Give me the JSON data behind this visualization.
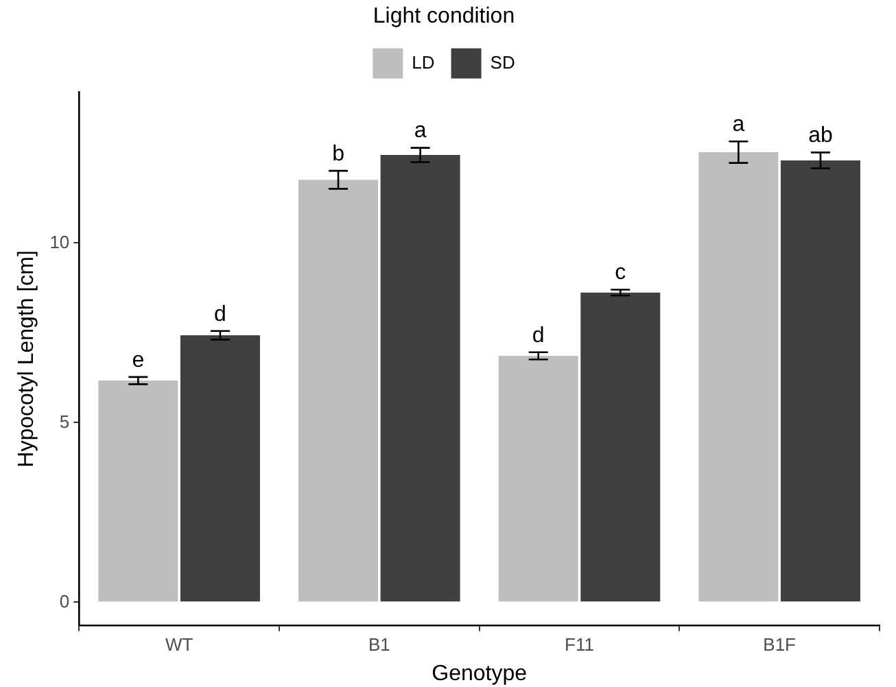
{
  "chart_data": {
    "type": "bar",
    "xlabel": "Genotype",
    "ylabel": "Hypocotyl Length [cm]",
    "legend_title": "Light condition",
    "legend": "top",
    "grid": false,
    "categories": [
      "WT",
      "B1",
      "F11",
      "B1F"
    ],
    "series": [
      {
        "name": "LD",
        "color": "#bebebe",
        "values": [
          6.17,
          11.76,
          6.86,
          12.53
        ],
        "errors": [
          0.1,
          0.25,
          0.1,
          0.3
        ],
        "value_labels": [
          "e",
          "b",
          "d",
          "a"
        ]
      },
      {
        "name": "SD",
        "color": "#404040",
        "values": [
          7.43,
          12.45,
          8.62,
          12.3
        ],
        "errors": [
          0.12,
          0.2,
          0.08,
          0.22
        ],
        "value_labels": [
          "d",
          "a",
          "c",
          "ab"
        ]
      }
    ],
    "ylim": [
      -0.65,
      14.2
    ],
    "yticks": [
      0,
      5,
      10
    ]
  }
}
